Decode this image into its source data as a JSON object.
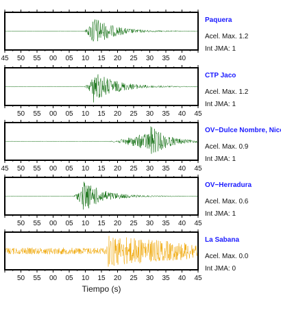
{
  "chart_data": {
    "type": "line",
    "xlabel": "Tiempo (s)",
    "x_tick_labels": [
      "45",
      "50",
      "55",
      "00",
      "05",
      "10",
      "15",
      "20",
      "25",
      "30",
      "35",
      "40",
      "45"
    ],
    "grid": false,
    "stations": [
      {
        "name": "Paquera",
        "accel_label": "Acel. Max. 1.2",
        "jma_label": "Int JMA: 1",
        "onset_tick_index": 4.9,
        "peak_tick_index": 5.4,
        "decay": 0.55,
        "amplitude": 0.95,
        "noise": 0.015,
        "color": "#0a6b0a",
        "tick_labels_shown": [
          "45",
          "50",
          "55",
          "00",
          "05",
          "10",
          "15",
          "20",
          "25",
          "30",
          "35",
          "40"
        ]
      },
      {
        "name": "CTP Jaco",
        "accel_label": "Acel. Max. 1.2",
        "jma_label": "Int JMA: 1",
        "onset_tick_index": 4.9,
        "peak_tick_index": 5.5,
        "decay": 0.6,
        "amplitude": 0.95,
        "noise": 0.015,
        "color": "#0a6b0a",
        "tick_labels_shown": [
          "50",
          "55",
          "00",
          "05",
          "10",
          "15",
          "20",
          "25",
          "30",
          "35",
          "40",
          "45"
        ]
      },
      {
        "name": "OV−Dulce Nombre, Nico",
        "accel_label": "Acel. Max. 0.9",
        "jma_label": "Int JMA: 1",
        "onset_tick_index": 6.3,
        "peak_tick_index": 9.05,
        "decay": 0.45,
        "amplitude": 0.95,
        "noise": 0.015,
        "color": "#0a6b0a",
        "tick_labels_shown": [
          "45",
          "50",
          "55",
          "00",
          "05",
          "10",
          "15",
          "20",
          "25",
          "30",
          "35",
          "40",
          "45"
        ]
      },
      {
        "name": "OV−Herradura",
        "accel_label": "Acel. Max. 0.6",
        "jma_label": "Int JMA: 1",
        "onset_tick_index": 4.2,
        "peak_tick_index": 4.85,
        "decay": 0.55,
        "amplitude": 0.95,
        "noise": 0.015,
        "color": "#0a6b0a",
        "tick_labels_shown": [
          "50",
          "55",
          "00",
          "05",
          "10",
          "15",
          "20",
          "25",
          "30",
          "35",
          "40",
          "45"
        ]
      },
      {
        "name": "La Sabana",
        "accel_label": "Acel. Max. 0.0",
        "jma_label": "Int JMA: 0",
        "onset_tick_index": 6.3,
        "peak_tick_index": 6.35,
        "decay": 2.5,
        "amplitude": 0.95,
        "noise": 0.2,
        "color": "#f0a500",
        "tick_labels_shown": [
          "50",
          "55",
          "00",
          "05",
          "10",
          "15",
          "20",
          "25",
          "30",
          "35",
          "40",
          "45"
        ]
      }
    ]
  }
}
